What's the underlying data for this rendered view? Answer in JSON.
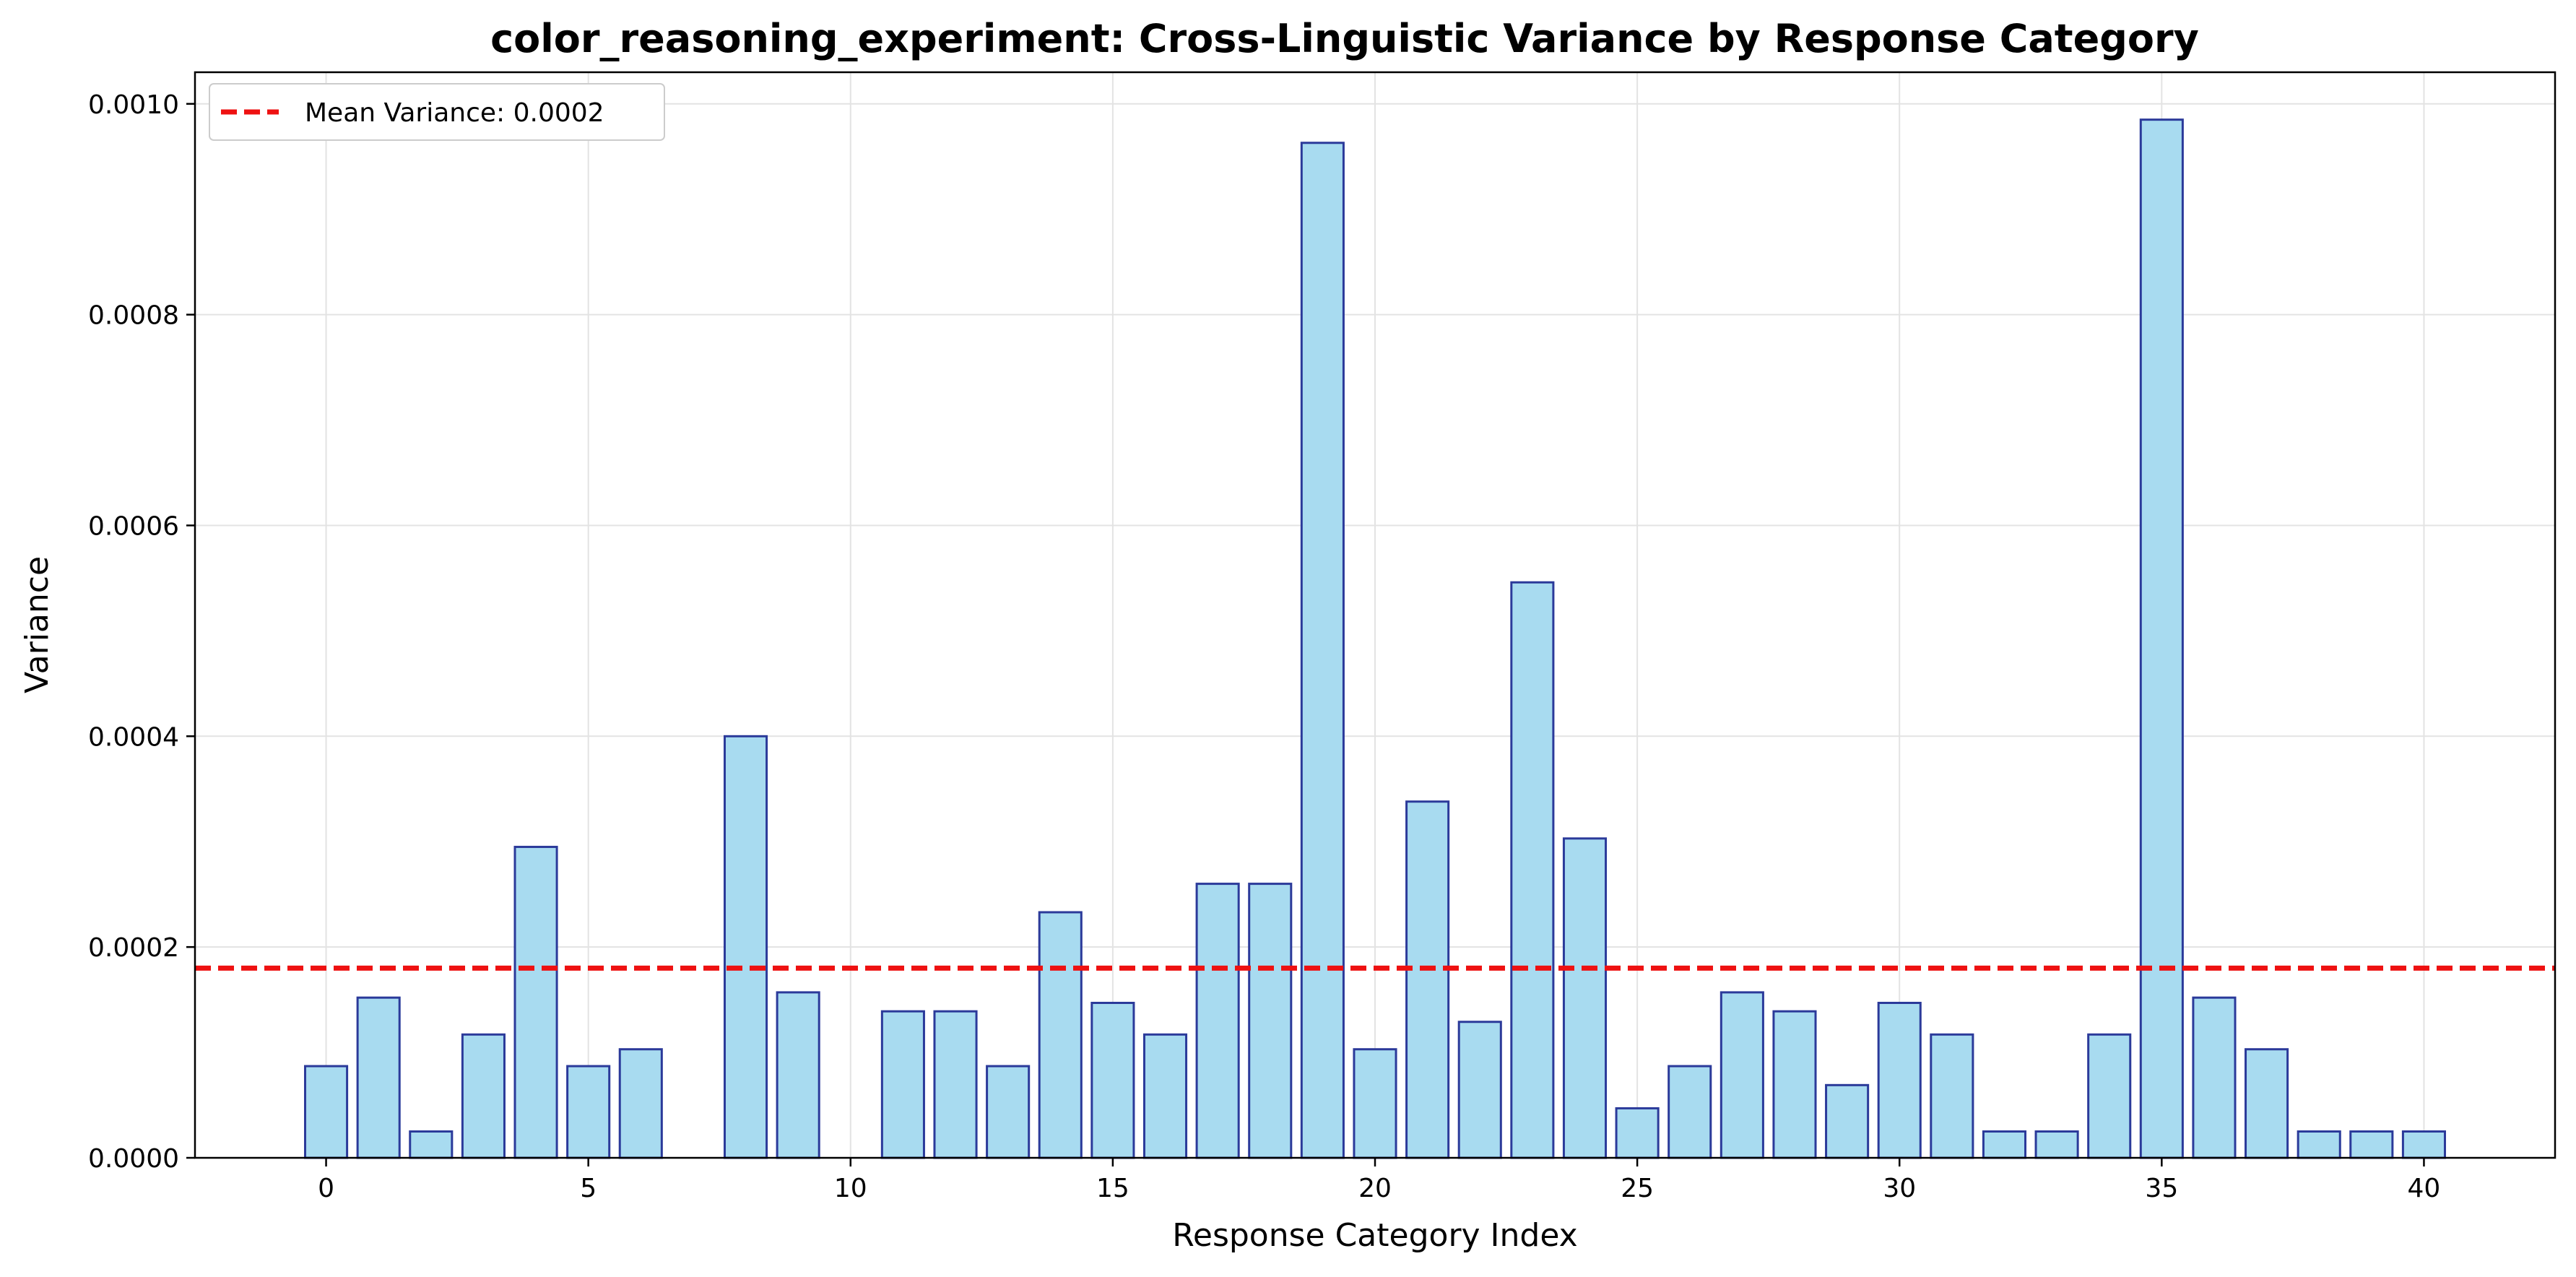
{
  "chart_data": {
    "type": "bar",
    "title": "color_reasoning_experiment: Cross-Linguistic Variance by Response Category",
    "xlabel": "Response Category Index",
    "ylabel": "Variance",
    "x": [
      0,
      1,
      2,
      3,
      4,
      5,
      6,
      7,
      8,
      9,
      10,
      11,
      12,
      13,
      14,
      15,
      16,
      17,
      18,
      19,
      20,
      21,
      22,
      23,
      24,
      25,
      26,
      27,
      28,
      29,
      30,
      31,
      32,
      33,
      34,
      35,
      36,
      37,
      38,
      39,
      40
    ],
    "values": [
      8.7e-05,
      0.000152,
      2.5e-05,
      0.000117,
      0.000295,
      8.7e-05,
      0.000103,
      0.0,
      0.0004,
      0.000157,
      0.0,
      0.000139,
      0.000139,
      8.7e-05,
      0.000233,
      0.000147,
      0.000117,
      0.00026,
      0.00026,
      0.000963,
      0.000103,
      0.000338,
      0.000129,
      0.000546,
      0.000303,
      4.7e-05,
      8.7e-05,
      0.000157,
      0.000139,
      6.9e-05,
      0.000147,
      0.000117,
      2.5e-05,
      2.5e-05,
      0.000117,
      0.000985,
      0.000152,
      0.000103,
      2.5e-05,
      2.5e-05,
      2.5e-05
    ],
    "xlim": [
      -2.5,
      42.5
    ],
    "ylim": [
      0,
      0.00103
    ],
    "xticks": [
      0,
      5,
      10,
      15,
      20,
      25,
      30,
      35,
      40
    ],
    "xtick_labels": [
      "0",
      "5",
      "10",
      "15",
      "20",
      "25",
      "30",
      "35",
      "40"
    ],
    "yticks": [
      0,
      0.0002,
      0.0004,
      0.0006,
      0.0008,
      0.001
    ],
    "ytick_labels": [
      "0.0000",
      "0.0002",
      "0.0004",
      "0.0006",
      "0.0008",
      "0.0010"
    ],
    "grid": true,
    "reference_line": {
      "y": 0.00018,
      "label": "Mean Variance: 0.0002",
      "color": "#ee1111",
      "style": "dashed"
    },
    "legend": {
      "placement": "top-left"
    },
    "colors": {
      "bar_fill": "#a8dbf0",
      "bar_edge": "#2b3a9a",
      "grid": "#e3e3e3",
      "axis": "#000000"
    }
  }
}
